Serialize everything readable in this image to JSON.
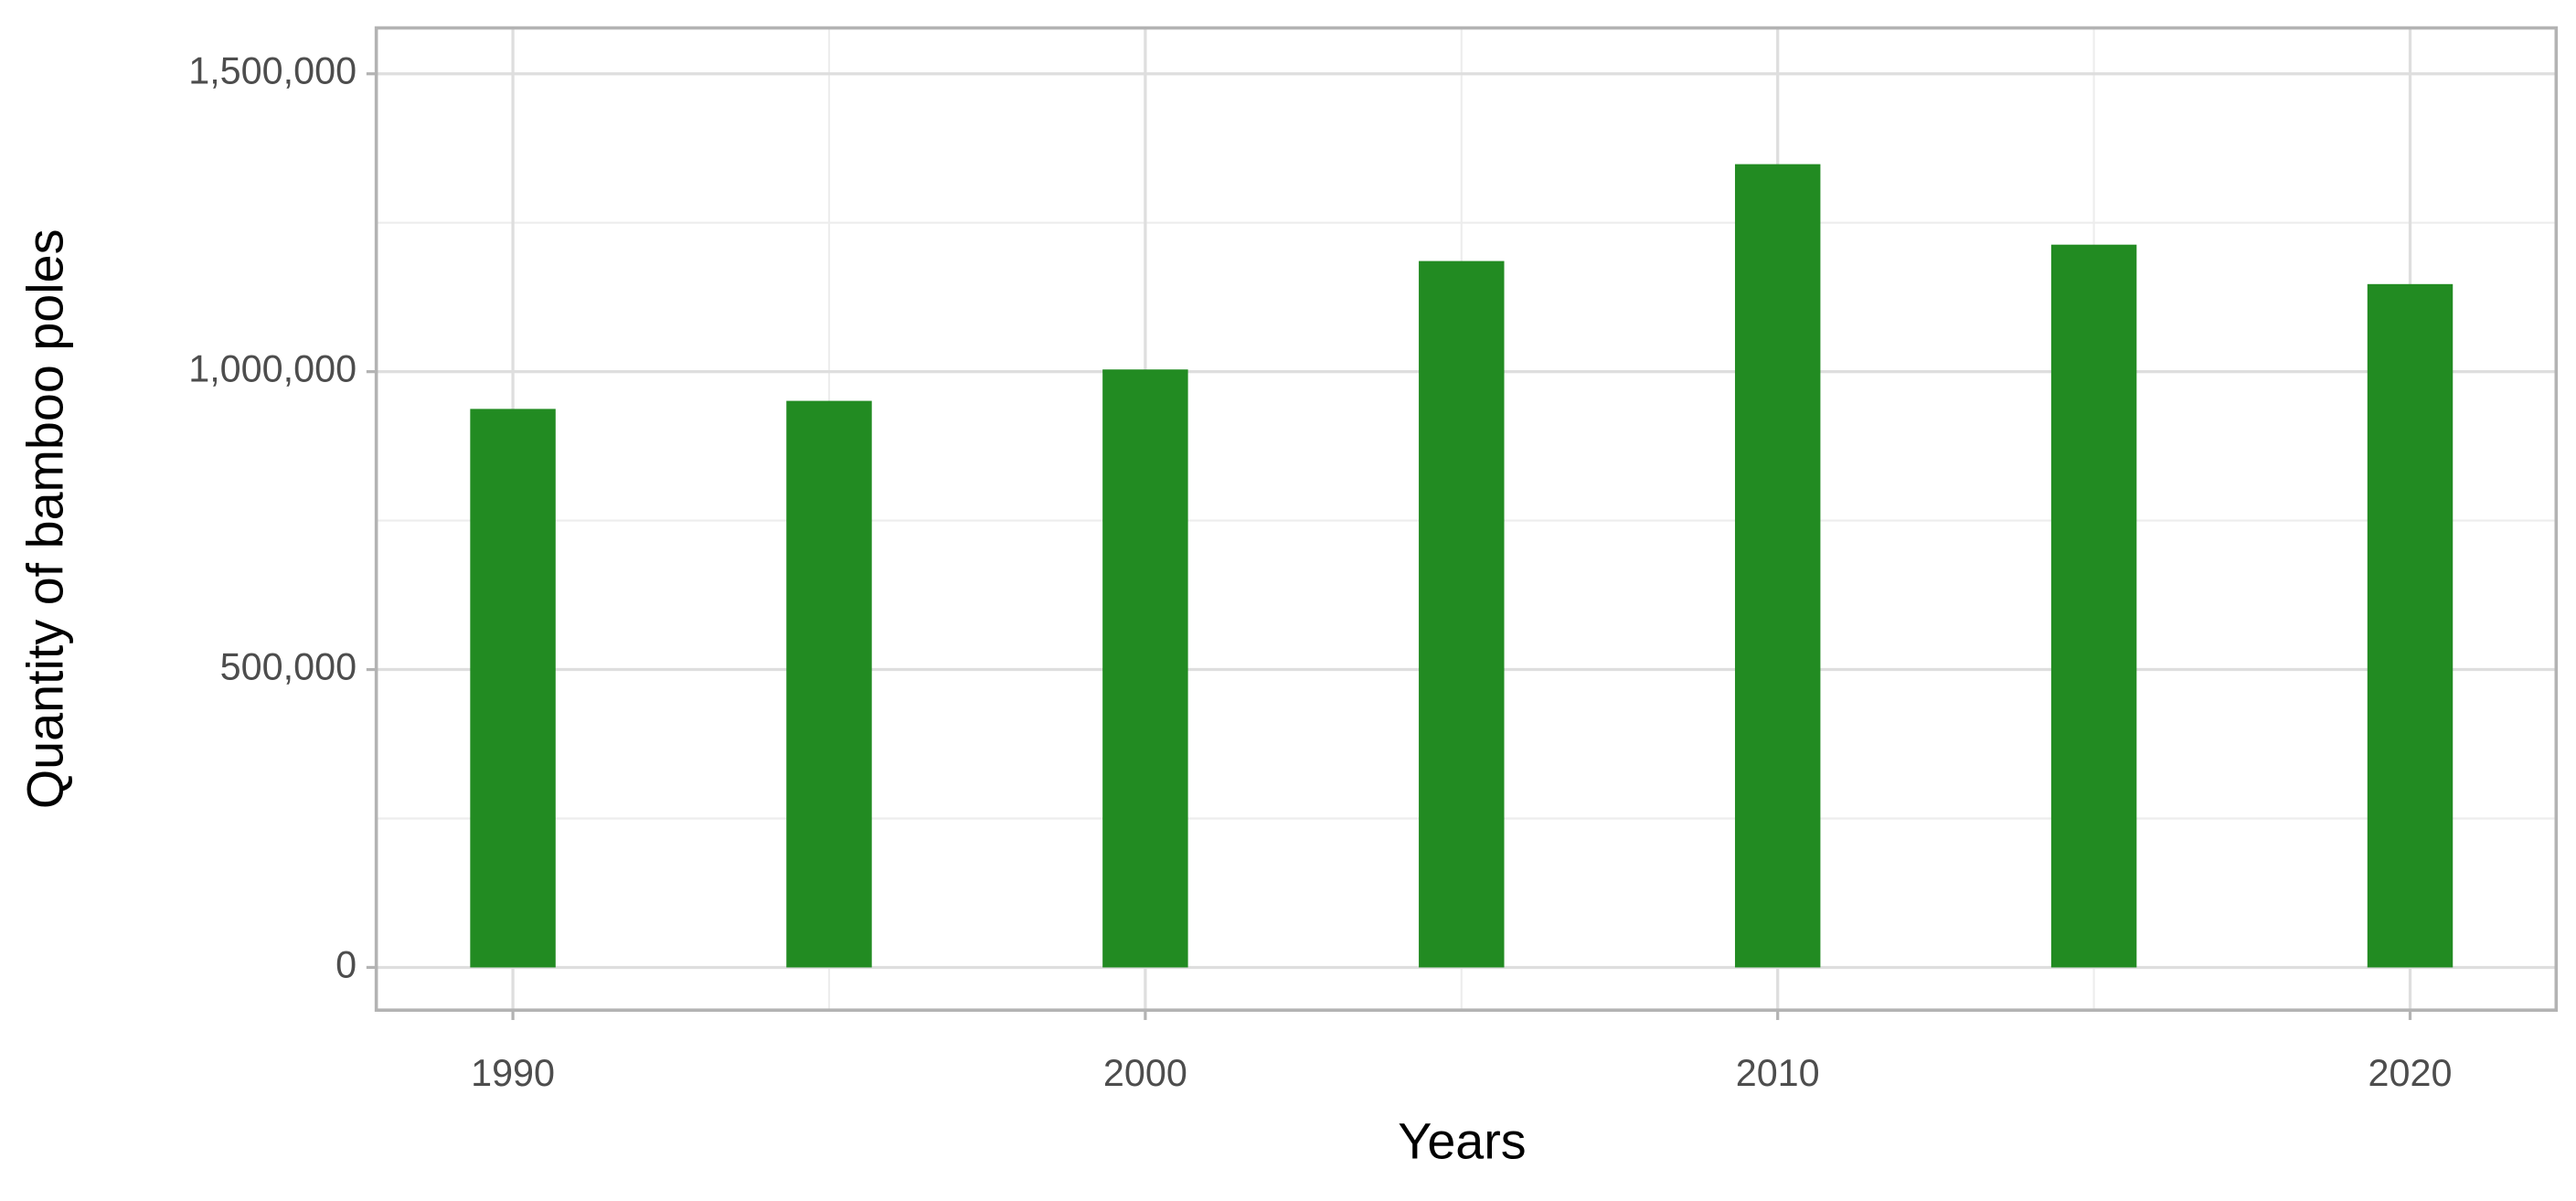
{
  "chart_data": {
    "type": "bar",
    "x_label": "Years",
    "y_label": "Quantity of bamboo poles",
    "x": [
      1990,
      1995,
      2000,
      2005,
      2010,
      2015,
      2020
    ],
    "values": [
      937500,
      951000,
      1003700,
      1185700,
      1348300,
      1213200,
      1147000
    ],
    "color": "#228b22",
    "xlim": [
      1987.84,
      2022.31
    ],
    "xticks": [
      1990,
      2000,
      2010,
      2020
    ],
    "x_minor_ticks": [
      1995,
      2005,
      2015
    ],
    "ylim": [
      -71700,
      1577000
    ],
    "yticks": [
      0,
      {
        "value": 500000,
        "label": "500,000"
      },
      {
        "value": 1000000,
        "label": "1,000,000"
      },
      {
        "value": 1500000,
        "label": "1,500,000"
      }
    ],
    "y_minor_ticks": [
      250000,
      750000,
      1250000
    ],
    "grid": true
  }
}
